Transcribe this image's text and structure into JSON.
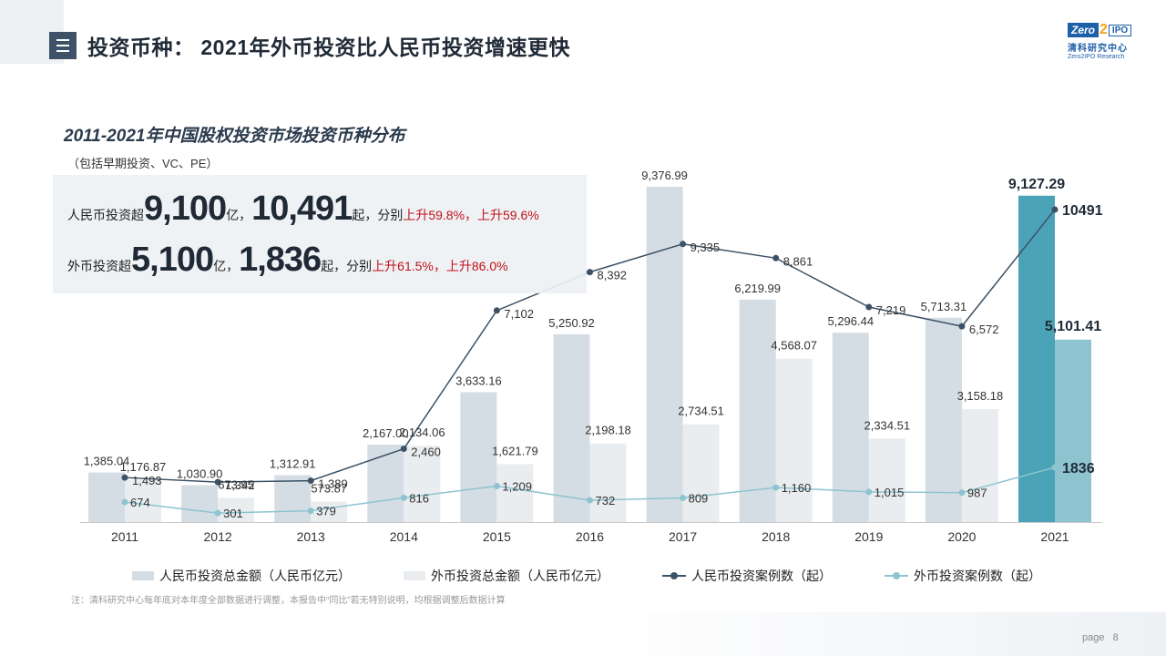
{
  "header": {
    "title": "投资币种： 2021年外币投资比人民币投资增速更快",
    "logo": {
      "zero": "Zero",
      "two": "2",
      "ipo": "IPO",
      "cn": "清科研究中心",
      "en": "Zero2IPO Research"
    }
  },
  "callout": {
    "rmb": {
      "prefix": "人民币投资超",
      "amount": "9,100",
      "unit1": "亿，",
      "count": "10,491",
      "unit2": "起，分别",
      "growth": "上升59.8%，上升59.6%"
    },
    "fx": {
      "prefix": "外币投资超",
      "amount": "5,100",
      "unit1": "亿，",
      "count": "1,836",
      "unit2": "起，分别",
      "growth": "上升61.5%，上升86.0%"
    }
  },
  "chart_data": {
    "type": "bar",
    "title": "2011-2021年中国股权投资市场投资币种分布",
    "subtitle": "（包括早期投资、VC、PE）",
    "categories": [
      "2011",
      "2012",
      "2013",
      "2014",
      "2015",
      "2016",
      "2017",
      "2018",
      "2019",
      "2020",
      "2021"
    ],
    "series": [
      {
        "name": "人民币投资总金额（人民币亿元）",
        "kind": "bar",
        "axis": "left",
        "color": "#d5dde4",
        "highlight_color": "#4aa3b6",
        "values": [
          1385.04,
          1030.9,
          1312.91,
          2167.0,
          3633.16,
          5250.92,
          9376.99,
          6219.99,
          5296.44,
          5713.31,
          9127.29
        ],
        "labels": [
          "1,385.04",
          "1,030.90",
          "1,312.91",
          "2,167.00",
          "3,633.16",
          "5,250.92",
          "9,376.99",
          "6,219.99",
          "5,296.44",
          "5,713.31",
          "9,127.29"
        ]
      },
      {
        "name": "外币投资总金额（人民币亿元）",
        "kind": "bar",
        "axis": "left",
        "color": "#e9edf0",
        "highlight_color": "#8ec4d0",
        "values": [
          1176.87,
          673.95,
          573.87,
          2134.06,
          1621.79,
          2198.18,
          2734.51,
          4568.07,
          2334.51,
          3158.18,
          5101.41
        ],
        "labels": [
          "1,176.87",
          "673.95",
          "573.87",
          "2,134.06",
          "1,621.79",
          "2,198.18",
          "2,734.51",
          "4,568.07",
          "2,334.51",
          "3,158.18",
          "5,101.41"
        ]
      },
      {
        "name": "人民币投资案例数（起）",
        "kind": "line",
        "axis": "right",
        "color": "#3d5266",
        "values": [
          1493,
          1342,
          1389,
          2460,
          7102,
          8392,
          9335,
          8861,
          7219,
          6572,
          10491
        ],
        "labels": [
          "1,493",
          "1,342",
          "1,389",
          "2,460",
          "7,102",
          "8,392",
          "9,335",
          "8,861",
          "7,219",
          "6,572",
          "10491"
        ]
      },
      {
        "name": "外币投资案例数（起）",
        "kind": "line",
        "axis": "right",
        "color": "#8ec4d0",
        "values": [
          674,
          301,
          379,
          816,
          1209,
          732,
          809,
          1160,
          1015,
          987,
          1836
        ],
        "labels": [
          "674",
          "301",
          "379",
          "816",
          "1,209",
          "732",
          "809",
          "1,160",
          "1,015",
          "987",
          "1836"
        ]
      }
    ],
    "highlight_category": "2021",
    "legend_position": "bottom",
    "grid": false
  },
  "footer": {
    "note": "注：清科研究中心每年底对本年度全部数据进行调整，本报告中“同比”若无特别说明，均根据调整后数据计算",
    "page_label": "page",
    "page_number": "8"
  }
}
